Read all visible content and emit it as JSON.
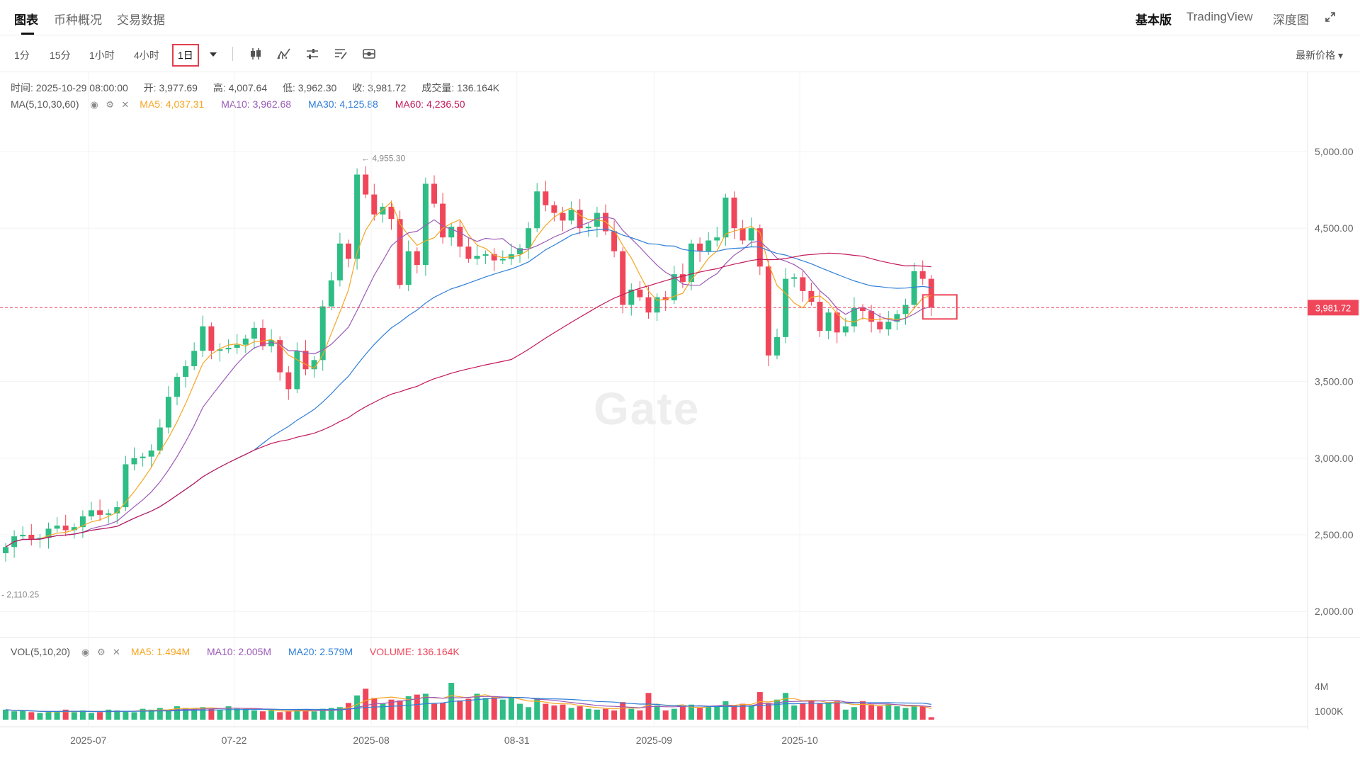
{
  "tabs": [
    "图表",
    "币种概况",
    "交易数据"
  ],
  "right_tabs": [
    "基本版",
    "TradingView",
    "深度图"
  ],
  "intervals": [
    "1分",
    "15分",
    "1小时",
    "4小时",
    "1日"
  ],
  "active_interval": "1日",
  "price_type": "最新价格",
  "ohlc": {
    "time": "时间: 2025-10-29 08:00:00",
    "open": "开: 3,977.69",
    "high": "高: 4,007.64",
    "low": "低: 3,962.30",
    "close": "收: 3,981.72",
    "volume": "成交量: 136.164K"
  },
  "ma": {
    "label": "MA(5,10,30,60)",
    "ma5": "MA5: 4,037.31",
    "ma10": "MA10: 3,962.68",
    "ma30": "MA30: 4,125.88",
    "ma60": "MA60: 4,236.50"
  },
  "vol": {
    "label": "VOL(5,10,20)",
    "ma5": "MA5: 1.494M",
    "ma10": "MA10: 2.005M",
    "ma20": "MA20: 2.579M",
    "volume": "VOLUME: 136.164K"
  },
  "current_price": "3,981.72",
  "max_label": "4,955.30",
  "min_label": "2,110.25",
  "watermark": "Gate",
  "colors": {
    "up": "#2ebd85",
    "down": "#f0465a",
    "ma5": "#f5a623",
    "ma10": "#9b59b6",
    "ma30": "#2f7fd8",
    "ma60": "#c2185b"
  },
  "chart_data": {
    "type": "candlestick",
    "y_ticks": [
      "5,000.00",
      "4,500.00",
      "3,500.00",
      "3,000.00",
      "2,500.00",
      "2,000.00"
    ],
    "y_tick_values": [
      5000,
      4500,
      3500,
      3000,
      2500,
      2000
    ],
    "x_labels": [
      "2025-07",
      "07-22",
      "2025-08",
      "08-31",
      "2025-09",
      "2025-10"
    ],
    "x_label_index": [
      8,
      25,
      41,
      58,
      74,
      91
    ],
    "vol_ticks": [
      "4M",
      "1000K"
    ],
    "close": [
      2420,
      2490,
      2500,
      2470,
      2480,
      2540,
      2560,
      2530,
      2550,
      2620,
      2660,
      2630,
      2640,
      2680,
      2960,
      3000,
      3010,
      3050,
      3200,
      3400,
      3530,
      3600,
      3700,
      3860,
      3700,
      3710,
      3720,
      3740,
      3780,
      3850,
      3730,
      3770,
      3560,
      3450,
      3700,
      3580,
      3640,
      3990,
      4160,
      4400,
      4300,
      4850,
      4720,
      4590,
      4640,
      4560,
      4130,
      4350,
      4260,
      4790,
      4660,
      4440,
      4510,
      4380,
      4300,
      4320,
      4330,
      4290,
      4300,
      4330,
      4370,
      4500,
      4740,
      4650,
      4600,
      4550,
      4620,
      4500,
      4510,
      4600,
      4480,
      4350,
      4000,
      4100,
      4050,
      3950,
      4050,
      4030,
      4200,
      4150,
      4400,
      4350,
      4420,
      4440,
      4700,
      4500,
      4420,
      4500,
      4250,
      3670,
      3790,
      4170,
      4180,
      4090,
      4020,
      3830,
      3950,
      3820,
      3860,
      3980,
      3960,
      3890,
      3840,
      3890,
      3940,
      4000,
      4220,
      4170,
      3982
    ],
    "volume": [
      1.2,
      1.0,
      1.1,
      0.9,
      0.8,
      0.9,
      1.0,
      1.2,
      0.9,
      1.1,
      0.8,
      0.9,
      1.2,
      1.1,
      1.0,
      0.9,
      1.3,
      1.2,
      1.4,
      1.1,
      1.6,
      1.4,
      1.3,
      1.5,
      1.3,
      1.2,
      1.6,
      1.3,
      1.2,
      1.1,
      1.0,
      1.1,
      0.9,
      1.0,
      1.2,
      1.1,
      1.0,
      1.3,
      1.4,
      1.5,
      2.0,
      2.9,
      3.7,
      2.6,
      1.9,
      2.4,
      2.3,
      2.8,
      3.0,
      3.1,
      1.9,
      2.0,
      4.4,
      2.3,
      2.5,
      3.1,
      2.6,
      2.8,
      2.4,
      2.6,
      1.9,
      1.5,
      2.6,
      1.9,
      1.7,
      1.8,
      1.4,
      1.6,
      1.3,
      1.2,
      1.3,
      1.1,
      2.1,
      1.3,
      1.1,
      3.2,
      1.7,
      1.1,
      1.3,
      1.6,
      1.8,
      1.4,
      1.6,
      1.7,
      2.2,
      1.7,
      1.9,
      1.7,
      3.3,
      2.0,
      2.4,
      3.2,
      1.7,
      2.0,
      2.3,
      2.0,
      2.1,
      2.2,
      1.2,
      1.5,
      2.2,
      1.8,
      1.6,
      1.8,
      1.6,
      1.4,
      1.7,
      1.6,
      0.3
    ]
  }
}
